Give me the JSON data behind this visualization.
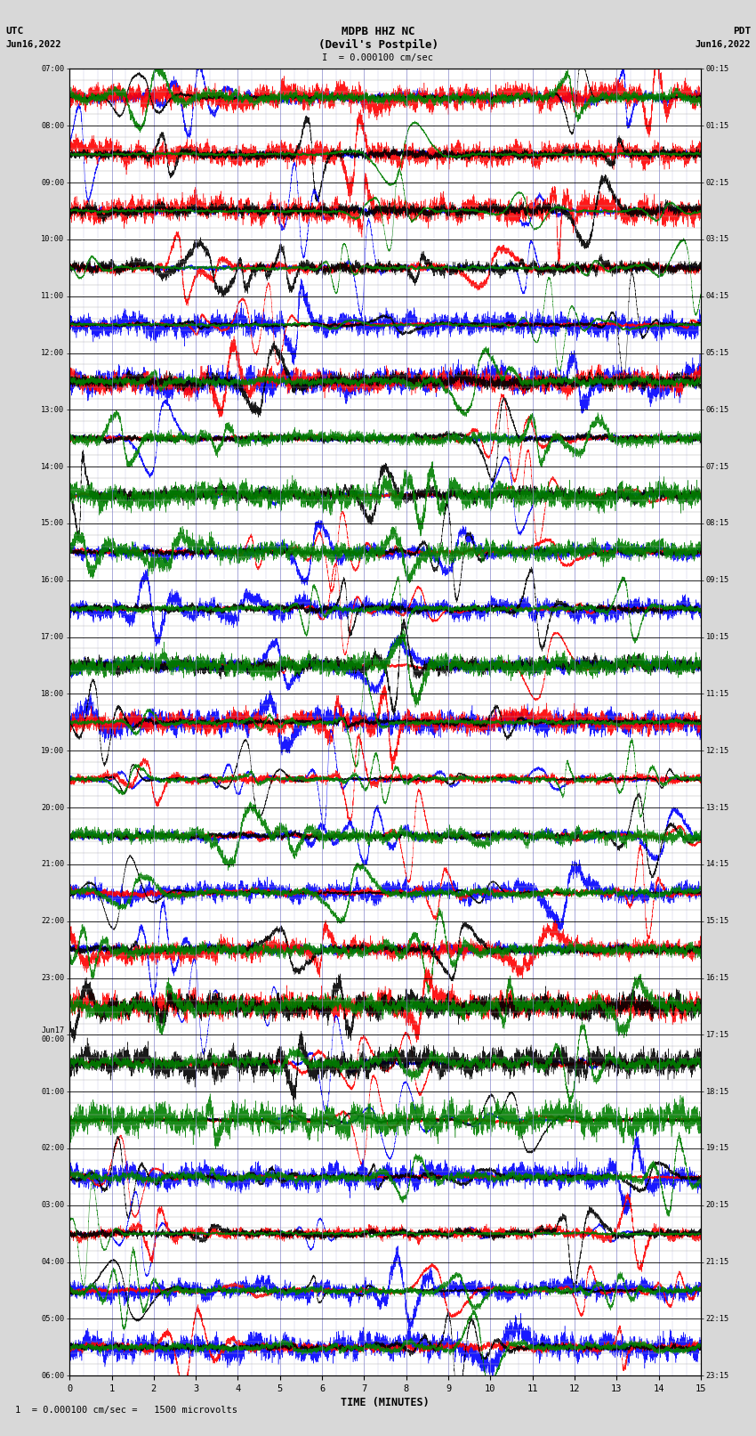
{
  "title_line1": "MDPB HHZ NC",
  "title_line2": "(Devil's Postpile)",
  "scale_text": "I  = 0.000100 cm/sec",
  "footer_text": "1  = 0.000100 cm/sec =   1500 microvolts",
  "label_left_top": "UTC",
  "label_left_date": "Jun16,2022",
  "label_right_top": "PDT",
  "label_right_date": "Jun16,2022",
  "xlabel": "TIME (MINUTES)",
  "utc_hour_labels": [
    "07:00",
    "08:00",
    "09:00",
    "10:00",
    "11:00",
    "12:00",
    "13:00",
    "14:00",
    "15:00",
    "16:00",
    "17:00",
    "18:00",
    "19:00",
    "20:00",
    "21:00",
    "22:00",
    "23:00",
    "Jun17\n00:00",
    "01:00",
    "02:00",
    "03:00",
    "04:00",
    "05:00",
    "06:00"
  ],
  "pdt_hour_labels": [
    "00:15",
    "01:15",
    "02:15",
    "03:15",
    "04:15",
    "05:15",
    "06:15",
    "07:15",
    "08:15",
    "09:15",
    "10:15",
    "11:15",
    "12:15",
    "13:15",
    "14:15",
    "15:15",
    "16:15",
    "17:15",
    "18:15",
    "19:15",
    "20:15",
    "21:15",
    "22:15",
    "23:15"
  ],
  "n_hours": 23,
  "n_points": 9000,
  "x_min": 0,
  "x_max": 15,
  "colors": [
    "blue",
    "red",
    "black",
    "green"
  ],
  "background_color": "#d8d8d8",
  "plot_bg": "#ffffff",
  "major_grid_color": "#000000",
  "minor_grid_color": "#aaaaaa",
  "vert_grid_color": "#8888cc"
}
